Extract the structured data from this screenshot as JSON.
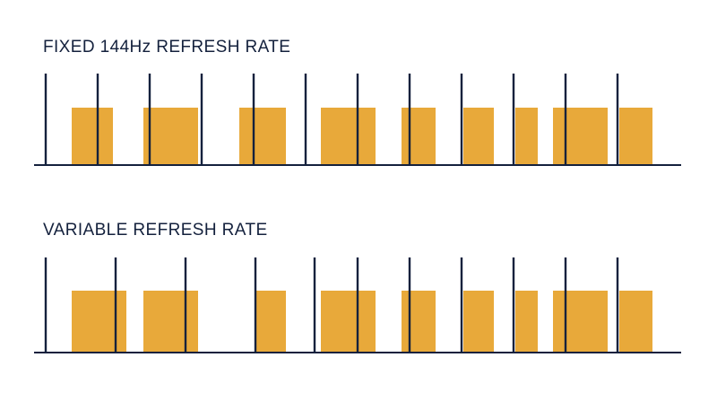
{
  "colors": {
    "frame": "#e8a93a",
    "line": "#14213d",
    "background": "#ffffff"
  },
  "panels": [
    {
      "title": "FIXED 144Hz REFRESH RATE",
      "refresh_lines": [
        0,
        58,
        116,
        174,
        232,
        290,
        348,
        406,
        464,
        522,
        580,
        638
      ],
      "frames": [
        [
          29,
          75
        ],
        [
          109,
          170
        ],
        [
          216,
          268
        ],
        [
          307,
          368
        ],
        [
          397,
          435
        ],
        [
          466,
          500
        ],
        [
          524,
          549
        ],
        [
          566,
          627
        ],
        [
          640,
          677
        ]
      ]
    },
    {
      "title": "VARIABLE REFRESH RATE",
      "refresh_lines": [
        0,
        78,
        156,
        234,
        300,
        348,
        406,
        464,
        522,
        580,
        638
      ],
      "frames": [
        [
          29,
          90
        ],
        [
          109,
          170
        ],
        [
          234,
          268
        ],
        [
          307,
          368
        ],
        [
          397,
          435
        ],
        [
          466,
          500
        ],
        [
          524,
          549
        ],
        [
          566,
          627
        ],
        [
          640,
          677
        ]
      ]
    }
  ]
}
